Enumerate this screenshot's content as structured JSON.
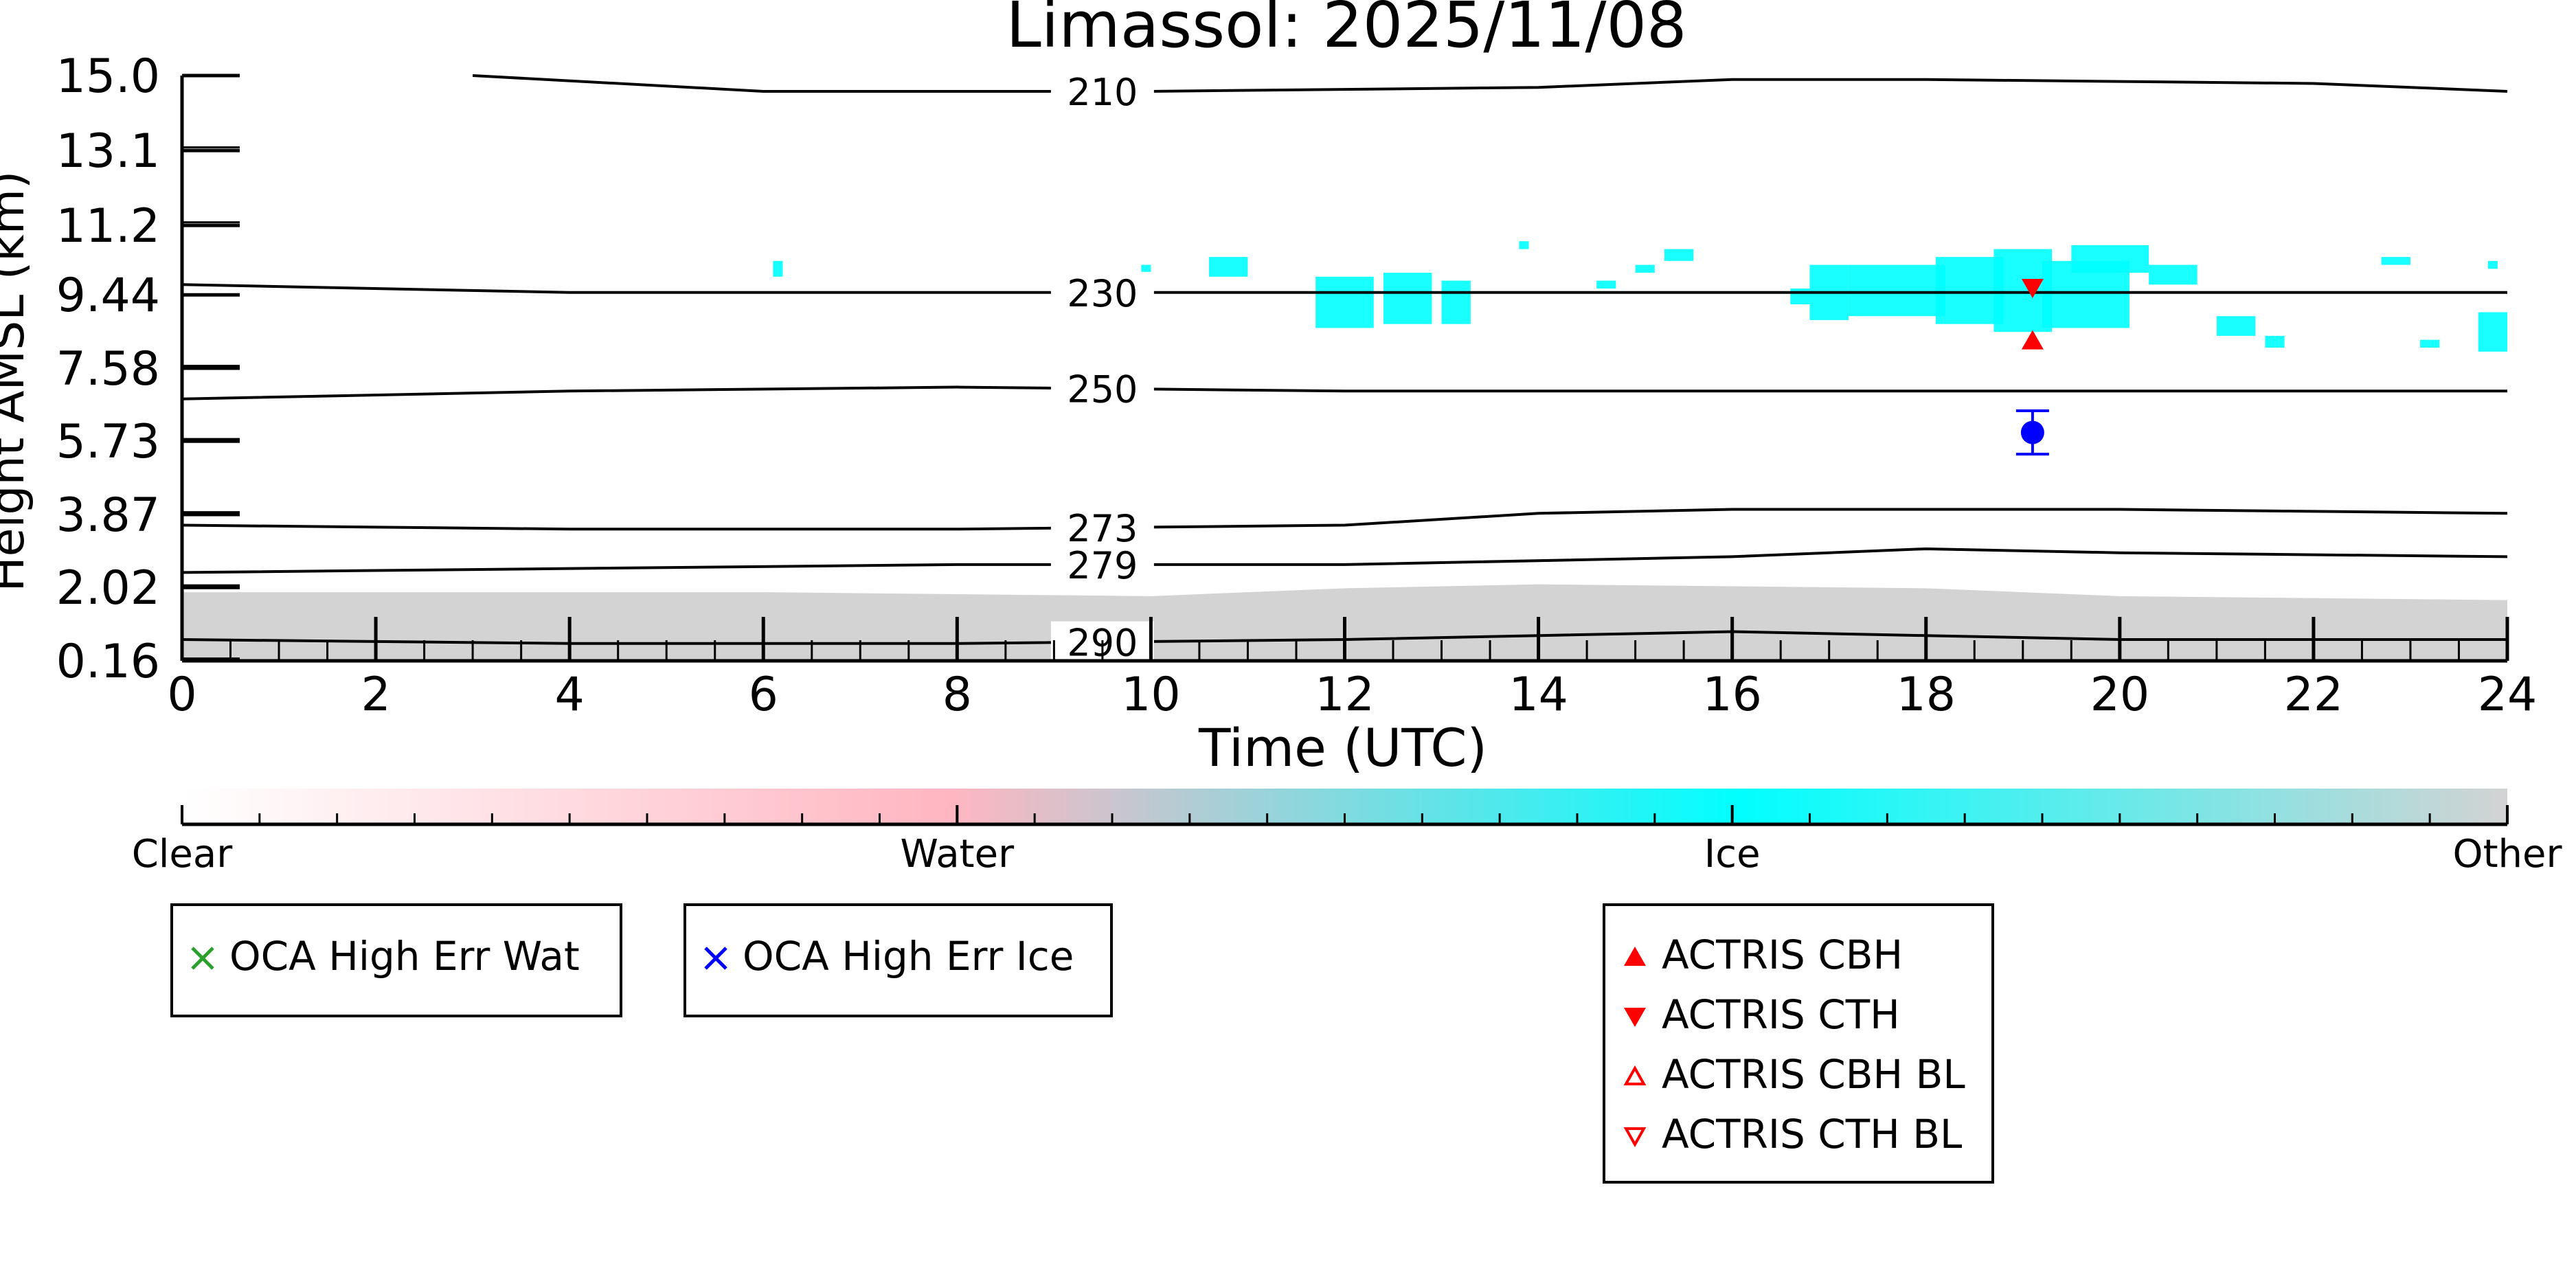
{
  "chart_data": {
    "type": "heatmap",
    "title": "Limassol: 2025/11/08",
    "xlabel": "Time (UTC)",
    "ylabel": "Height AMSL (km)",
    "xlim": [
      0,
      24
    ],
    "ylim": [
      0.16,
      15.0
    ],
    "x_ticks": [
      "0",
      "2",
      "4",
      "6",
      "8",
      "10",
      "12",
      "14",
      "16",
      "18",
      "20",
      "22",
      "24"
    ],
    "y_ticks": [
      {
        "label": "15.0",
        "value": 15.0
      },
      {
        "label": "13.1",
        "value": 13.1
      },
      {
        "label": "11.2",
        "value": 11.2
      },
      {
        "label": "9.44",
        "value": 9.44
      },
      {
        "label": "7.58",
        "value": 7.58
      },
      {
        "label": "5.73",
        "value": 5.73
      },
      {
        "label": "3.87",
        "value": 3.87
      },
      {
        "label": "2.02",
        "value": 2.02
      },
      {
        "label": "0.16",
        "value": 0.16
      }
    ],
    "temperature_contours": [
      {
        "label": "210",
        "points": [
          [
            3,
            15.0
          ],
          [
            6,
            14.6
          ],
          [
            10,
            14.6
          ],
          [
            14,
            14.7
          ],
          [
            16,
            14.9
          ],
          [
            18,
            14.9
          ],
          [
            22,
            14.8
          ],
          [
            24,
            14.6
          ]
        ]
      },
      {
        "label": "230",
        "points": [
          [
            0,
            9.7
          ],
          [
            4,
            9.5
          ],
          [
            8,
            9.5
          ],
          [
            12,
            9.5
          ],
          [
            16,
            9.5
          ],
          [
            20,
            9.5
          ],
          [
            24,
            9.5
          ]
        ]
      },
      {
        "label": "250",
        "points": [
          [
            0,
            6.8
          ],
          [
            4,
            7.0
          ],
          [
            8,
            7.1
          ],
          [
            12,
            7.0
          ],
          [
            16,
            7.0
          ],
          [
            20,
            7.0
          ],
          [
            24,
            7.0
          ]
        ]
      },
      {
        "label": "273",
        "points": [
          [
            0,
            3.6
          ],
          [
            4,
            3.5
          ],
          [
            8,
            3.5
          ],
          [
            12,
            3.6
          ],
          [
            14,
            3.9
          ],
          [
            16,
            4.0
          ],
          [
            20,
            4.0
          ],
          [
            24,
            3.9
          ]
        ]
      },
      {
        "label": "279",
        "points": [
          [
            0,
            2.4
          ],
          [
            4,
            2.5
          ],
          [
            8,
            2.6
          ],
          [
            12,
            2.6
          ],
          [
            16,
            2.8
          ],
          [
            18,
            3.0
          ],
          [
            20,
            2.9
          ],
          [
            24,
            2.8
          ]
        ]
      },
      {
        "label": "290",
        "points": [
          [
            0,
            0.7
          ],
          [
            4,
            0.6
          ],
          [
            8,
            0.6
          ],
          [
            12,
            0.7
          ],
          [
            14,
            0.8
          ],
          [
            16,
            0.9
          ],
          [
            18,
            0.8
          ],
          [
            20,
            0.7
          ],
          [
            24,
            0.7
          ]
        ]
      }
    ],
    "ice_cloud_patches": [
      {
        "t0": 6.1,
        "t1": 6.2,
        "h0": 9.9,
        "h1": 10.3
      },
      {
        "t0": 9.9,
        "t1": 10.0,
        "h0": 9.8,
        "h1": 10.2
      },
      {
        "t0": 10.6,
        "t1": 11.0,
        "h0": 9.9,
        "h1": 10.4
      },
      {
        "t0": 11.7,
        "t1": 12.3,
        "h0": 8.6,
        "h1": 9.9
      },
      {
        "t0": 12.4,
        "t1": 12.9,
        "h0": 8.7,
        "h1": 10.0
      },
      {
        "t0": 13.0,
        "t1": 13.3,
        "h0": 8.7,
        "h1": 9.8
      },
      {
        "t0": 13.8,
        "t1": 13.9,
        "h0": 10.6,
        "h1": 10.8
      },
      {
        "t0": 14.6,
        "t1": 14.8,
        "h0": 9.6,
        "h1": 9.8
      },
      {
        "t0": 15.0,
        "t1": 15.2,
        "h0": 10.0,
        "h1": 10.2
      },
      {
        "t0": 15.3,
        "t1": 15.6,
        "h0": 10.3,
        "h1": 10.6
      },
      {
        "t0": 16.6,
        "t1": 16.8,
        "h0": 9.2,
        "h1": 9.6
      },
      {
        "t0": 16.8,
        "t1": 17.2,
        "h0": 8.8,
        "h1": 10.2
      },
      {
        "t0": 17.2,
        "t1": 18.2,
        "h0": 8.9,
        "h1": 10.2
      },
      {
        "t0": 18.1,
        "t1": 18.8,
        "h0": 8.7,
        "h1": 10.4
      },
      {
        "t0": 18.7,
        "t1": 19.3,
        "h0": 8.5,
        "h1": 10.6
      },
      {
        "t0": 19.2,
        "t1": 20.1,
        "h0": 8.6,
        "h1": 10.3
      },
      {
        "t0": 19.5,
        "t1": 20.3,
        "h0": 10.0,
        "h1": 10.7
      },
      {
        "t0": 20.3,
        "t1": 20.8,
        "h0": 9.7,
        "h1": 10.2
      },
      {
        "t0": 21.0,
        "t1": 21.4,
        "h0": 8.4,
        "h1": 8.9
      },
      {
        "t0": 21.5,
        "t1": 21.7,
        "h0": 8.1,
        "h1": 8.4
      },
      {
        "t0": 22.7,
        "t1": 23.0,
        "h0": 10.2,
        "h1": 10.4
      },
      {
        "t0": 23.1,
        "t1": 23.3,
        "h0": 8.1,
        "h1": 8.3
      },
      {
        "t0": 23.7,
        "t1": 24.0,
        "h0": 8.0,
        "h1": 9.0
      },
      {
        "t0": 23.8,
        "t1": 23.9,
        "h0": 10.1,
        "h1": 10.3
      }
    ],
    "other_layer": {
      "t_start": 0,
      "t_end": 24,
      "h_base": 0.16,
      "h_top": [
        [
          0,
          1.9
        ],
        [
          6,
          1.9
        ],
        [
          10,
          1.8
        ],
        [
          12,
          2.0
        ],
        [
          14,
          2.1
        ],
        [
          18,
          2.0
        ],
        [
          20,
          1.8
        ],
        [
          24,
          1.7
        ]
      ]
    },
    "actris_cbh": [
      {
        "t": 19.1,
        "h": 8.3
      }
    ],
    "actris_cth": [
      {
        "t": 19.1,
        "h": 9.6
      }
    ],
    "oca_point": {
      "t": 19.1,
      "h": 5.95,
      "err_low": 5.4,
      "err_high": 6.5
    },
    "colorbar": {
      "labels": [
        "Clear",
        "Water",
        "Ice",
        "Other"
      ],
      "stops": [
        {
          "pos": 0.0,
          "color": "#ffffff"
        },
        {
          "pos": 0.33,
          "color": "#ffb6c1"
        },
        {
          "pos": 0.67,
          "color": "#00ffff"
        },
        {
          "pos": 1.0,
          "color": "#d3d3d3"
        }
      ]
    },
    "legends": [
      {
        "entries": [
          {
            "label": "OCA High Err Wat",
            "symbol": "x-cross",
            "color": "#2ca02c"
          }
        ]
      },
      {
        "entries": [
          {
            "label": "OCA High Err Ice",
            "symbol": "x-cross",
            "color": "#0000ff"
          }
        ]
      },
      {
        "entries": [
          {
            "label": "ACTRIS CBH",
            "symbol": "triangle-up-filled",
            "color": "#ff0000"
          },
          {
            "label": "ACTRIS CTH",
            "symbol": "triangle-down-filled",
            "color": "#ff0000"
          },
          {
            "label": "ACTRIS CBH BL",
            "symbol": "triangle-up-open",
            "color": "#ff0000"
          },
          {
            "label": "ACTRIS CTH BL",
            "symbol": "triangle-down-open",
            "color": "#ff0000"
          }
        ]
      }
    ]
  }
}
